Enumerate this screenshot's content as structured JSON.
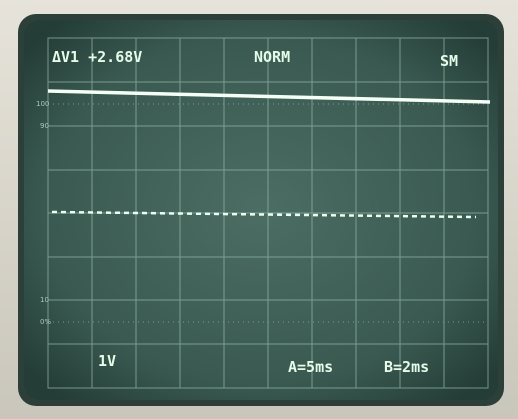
{
  "readout": {
    "delta": "ΔV1 +2.68V",
    "mode": "NORM",
    "sweep": "SM",
    "volts_per_div": "1V",
    "timebase_a": "A=5ms",
    "timebase_b": "B=2ms"
  },
  "graticule_labels": {
    "top": "100",
    "upper": "90",
    "lower": "10",
    "bottom": "0%"
  }
}
